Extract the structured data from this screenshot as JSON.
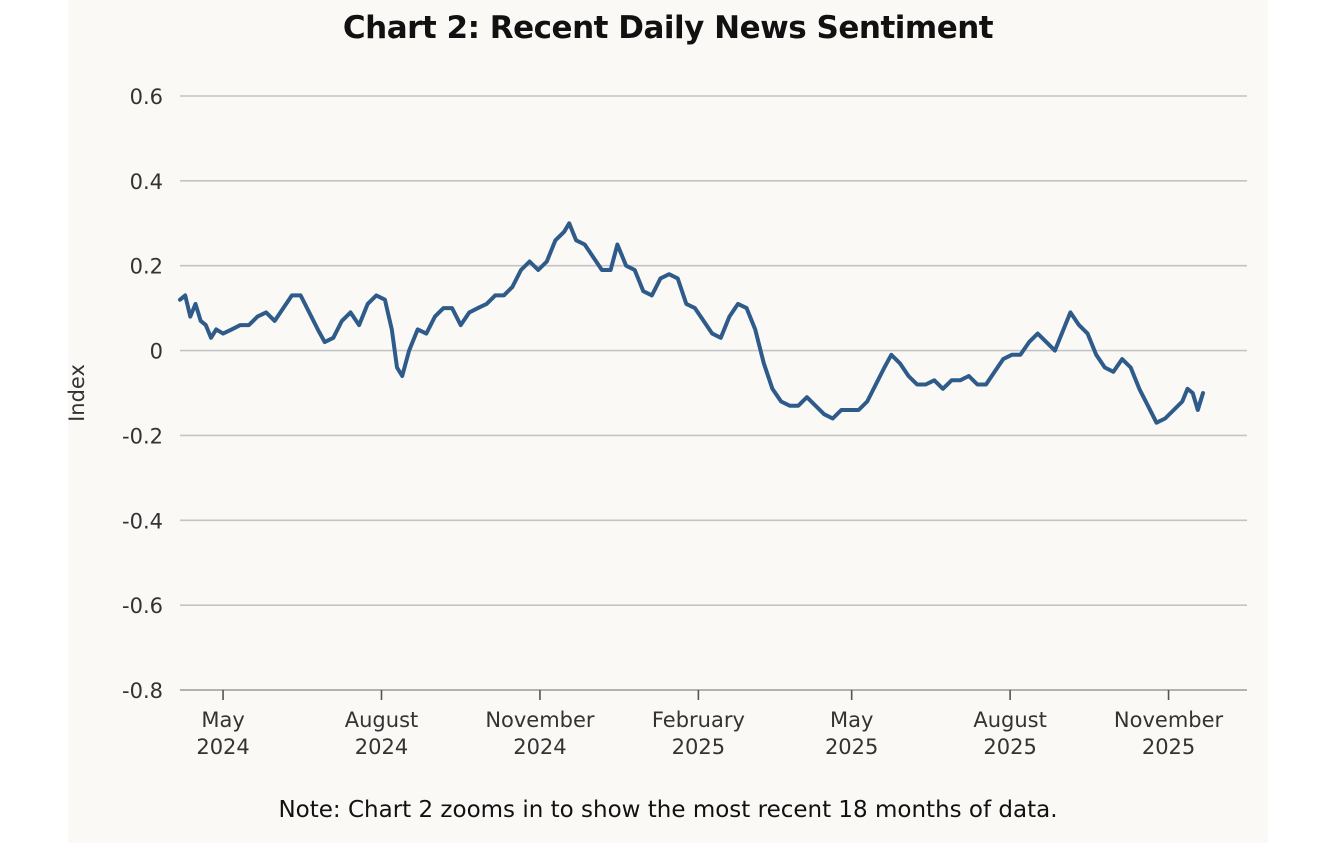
{
  "page": {
    "title": "Chart 2: Recent Daily News Sentiment",
    "note": "Note: Chart 2 zooms in to show the most recent 18 months of data."
  },
  "chart_data": {
    "type": "line",
    "title": "Chart 2: Recent Daily News Sentiment",
    "xlabel": "",
    "ylabel": "Index",
    "ylim": [
      -0.8,
      0.6
    ],
    "xlim": [
      "2024-04-06",
      "2025-11-21"
    ],
    "grid": "horizontal",
    "line_color": "#2f5b8a",
    "y_ticks": [
      {
        "value": 0.6,
        "label": "0.6"
      },
      {
        "value": 0.4,
        "label": "0.4"
      },
      {
        "value": 0.2,
        "label": "0.2"
      },
      {
        "value": 0,
        "label": "0"
      },
      {
        "value": -0.2,
        "label": "-0.2"
      },
      {
        "value": -0.4,
        "label": "-0.4"
      },
      {
        "value": -0.6,
        "label": "-0.6"
      },
      {
        "value": -0.8,
        "label": "-0.8"
      }
    ],
    "x_ticks": [
      {
        "date": "2024-05-01",
        "month": "May",
        "year": "2024"
      },
      {
        "date": "2024-08-01",
        "month": "August",
        "year": "2024"
      },
      {
        "date": "2024-11-01",
        "month": "November",
        "year": "2024"
      },
      {
        "date": "2025-02-01",
        "month": "February",
        "year": "2025"
      },
      {
        "date": "2025-05-01",
        "month": "May",
        "year": "2025"
      },
      {
        "date": "2025-08-01",
        "month": "August",
        "year": "2025"
      },
      {
        "date": "2025-11-01",
        "month": "November",
        "year": "2025"
      }
    ],
    "series": [
      {
        "points": [
          [
            "2024-04-06",
            0.12
          ],
          [
            "2024-04-09",
            0.13
          ],
          [
            "2024-04-12",
            0.08
          ],
          [
            "2024-04-15",
            0.11
          ],
          [
            "2024-04-18",
            0.07
          ],
          [
            "2024-04-21",
            0.06
          ],
          [
            "2024-04-24",
            0.03
          ],
          [
            "2024-04-27",
            0.05
          ],
          [
            "2024-05-01",
            0.04
          ],
          [
            "2024-05-06",
            0.05
          ],
          [
            "2024-05-11",
            0.06
          ],
          [
            "2024-05-16",
            0.06
          ],
          [
            "2024-05-21",
            0.08
          ],
          [
            "2024-05-26",
            0.09
          ],
          [
            "2024-05-31",
            0.07
          ],
          [
            "2024-06-05",
            0.1
          ],
          [
            "2024-06-10",
            0.13
          ],
          [
            "2024-06-15",
            0.13
          ],
          [
            "2024-06-20",
            0.09
          ],
          [
            "2024-06-25",
            0.05
          ],
          [
            "2024-06-29",
            0.02
          ],
          [
            "2024-07-04",
            0.03
          ],
          [
            "2024-07-09",
            0.07
          ],
          [
            "2024-07-14",
            0.09
          ],
          [
            "2024-07-19",
            0.06
          ],
          [
            "2024-07-24",
            0.11
          ],
          [
            "2024-07-29",
            0.13
          ],
          [
            "2024-08-03",
            0.12
          ],
          [
            "2024-08-07",
            0.05
          ],
          [
            "2024-08-10",
            -0.04
          ],
          [
            "2024-08-13",
            -0.06
          ],
          [
            "2024-08-17",
            0.0
          ],
          [
            "2024-08-22",
            0.05
          ],
          [
            "2024-08-27",
            0.04
          ],
          [
            "2024-09-01",
            0.08
          ],
          [
            "2024-09-06",
            0.1
          ],
          [
            "2024-09-11",
            0.1
          ],
          [
            "2024-09-16",
            0.06
          ],
          [
            "2024-09-21",
            0.09
          ],
          [
            "2024-09-26",
            0.1
          ],
          [
            "2024-10-01",
            0.11
          ],
          [
            "2024-10-06",
            0.13
          ],
          [
            "2024-10-11",
            0.13
          ],
          [
            "2024-10-16",
            0.15
          ],
          [
            "2024-10-21",
            0.19
          ],
          [
            "2024-10-26",
            0.21
          ],
          [
            "2024-10-31",
            0.19
          ],
          [
            "2024-11-05",
            0.21
          ],
          [
            "2024-11-10",
            0.26
          ],
          [
            "2024-11-15",
            0.28
          ],
          [
            "2024-11-18",
            0.3
          ],
          [
            "2024-11-22",
            0.26
          ],
          [
            "2024-11-27",
            0.25
          ],
          [
            "2024-12-02",
            0.22
          ],
          [
            "2024-12-07",
            0.19
          ],
          [
            "2024-12-12",
            0.19
          ],
          [
            "2024-12-16",
            0.25
          ],
          [
            "2024-12-21",
            0.2
          ],
          [
            "2024-12-26",
            0.19
          ],
          [
            "2024-12-31",
            0.14
          ],
          [
            "2025-01-05",
            0.13
          ],
          [
            "2025-01-10",
            0.17
          ],
          [
            "2025-01-15",
            0.18
          ],
          [
            "2025-01-20",
            0.17
          ],
          [
            "2025-01-25",
            0.11
          ],
          [
            "2025-01-30",
            0.1
          ],
          [
            "2025-02-04",
            0.07
          ],
          [
            "2025-02-09",
            0.04
          ],
          [
            "2025-02-14",
            0.03
          ],
          [
            "2025-02-19",
            0.08
          ],
          [
            "2025-02-24",
            0.11
          ],
          [
            "2025-03-01",
            0.1
          ],
          [
            "2025-03-06",
            0.05
          ],
          [
            "2025-03-11",
            -0.03
          ],
          [
            "2025-03-16",
            -0.09
          ],
          [
            "2025-03-21",
            -0.12
          ],
          [
            "2025-03-26",
            -0.13
          ],
          [
            "2025-03-31",
            -0.13
          ],
          [
            "2025-04-05",
            -0.11
          ],
          [
            "2025-04-10",
            -0.13
          ],
          [
            "2025-04-15",
            -0.15
          ],
          [
            "2025-04-20",
            -0.16
          ],
          [
            "2025-04-25",
            -0.14
          ],
          [
            "2025-04-30",
            -0.14
          ],
          [
            "2025-05-05",
            -0.14
          ],
          [
            "2025-05-10",
            -0.12
          ],
          [
            "2025-05-15",
            -0.08
          ],
          [
            "2025-05-20",
            -0.04
          ],
          [
            "2025-05-24",
            -0.01
          ],
          [
            "2025-05-29",
            -0.03
          ],
          [
            "2025-06-03",
            -0.06
          ],
          [
            "2025-06-08",
            -0.08
          ],
          [
            "2025-06-13",
            -0.08
          ],
          [
            "2025-06-18",
            -0.07
          ],
          [
            "2025-06-23",
            -0.09
          ],
          [
            "2025-06-28",
            -0.07
          ],
          [
            "2025-07-03",
            -0.07
          ],
          [
            "2025-07-08",
            -0.06
          ],
          [
            "2025-07-13",
            -0.08
          ],
          [
            "2025-07-18",
            -0.08
          ],
          [
            "2025-07-23",
            -0.05
          ],
          [
            "2025-07-28",
            -0.02
          ],
          [
            "2025-08-02",
            -0.01
          ],
          [
            "2025-08-07",
            -0.01
          ],
          [
            "2025-08-12",
            0.02
          ],
          [
            "2025-08-17",
            0.04
          ],
          [
            "2025-08-22",
            0.02
          ],
          [
            "2025-08-27",
            0.0
          ],
          [
            "2025-09-01",
            0.05
          ],
          [
            "2025-09-05",
            0.09
          ],
          [
            "2025-09-10",
            0.06
          ],
          [
            "2025-09-15",
            0.04
          ],
          [
            "2025-09-20",
            -0.01
          ],
          [
            "2025-09-25",
            -0.04
          ],
          [
            "2025-09-30",
            -0.05
          ],
          [
            "2025-10-05",
            -0.02
          ],
          [
            "2025-10-10",
            -0.04
          ],
          [
            "2025-10-15",
            -0.09
          ],
          [
            "2025-10-20",
            -0.13
          ],
          [
            "2025-10-25",
            -0.17
          ],
          [
            "2025-10-30",
            -0.16
          ],
          [
            "2025-11-04",
            -0.14
          ],
          [
            "2025-11-09",
            -0.12
          ],
          [
            "2025-11-12",
            -0.09
          ],
          [
            "2025-11-15",
            -0.1
          ],
          [
            "2025-11-18",
            -0.14
          ],
          [
            "2025-11-21",
            -0.1
          ]
        ]
      }
    ]
  }
}
